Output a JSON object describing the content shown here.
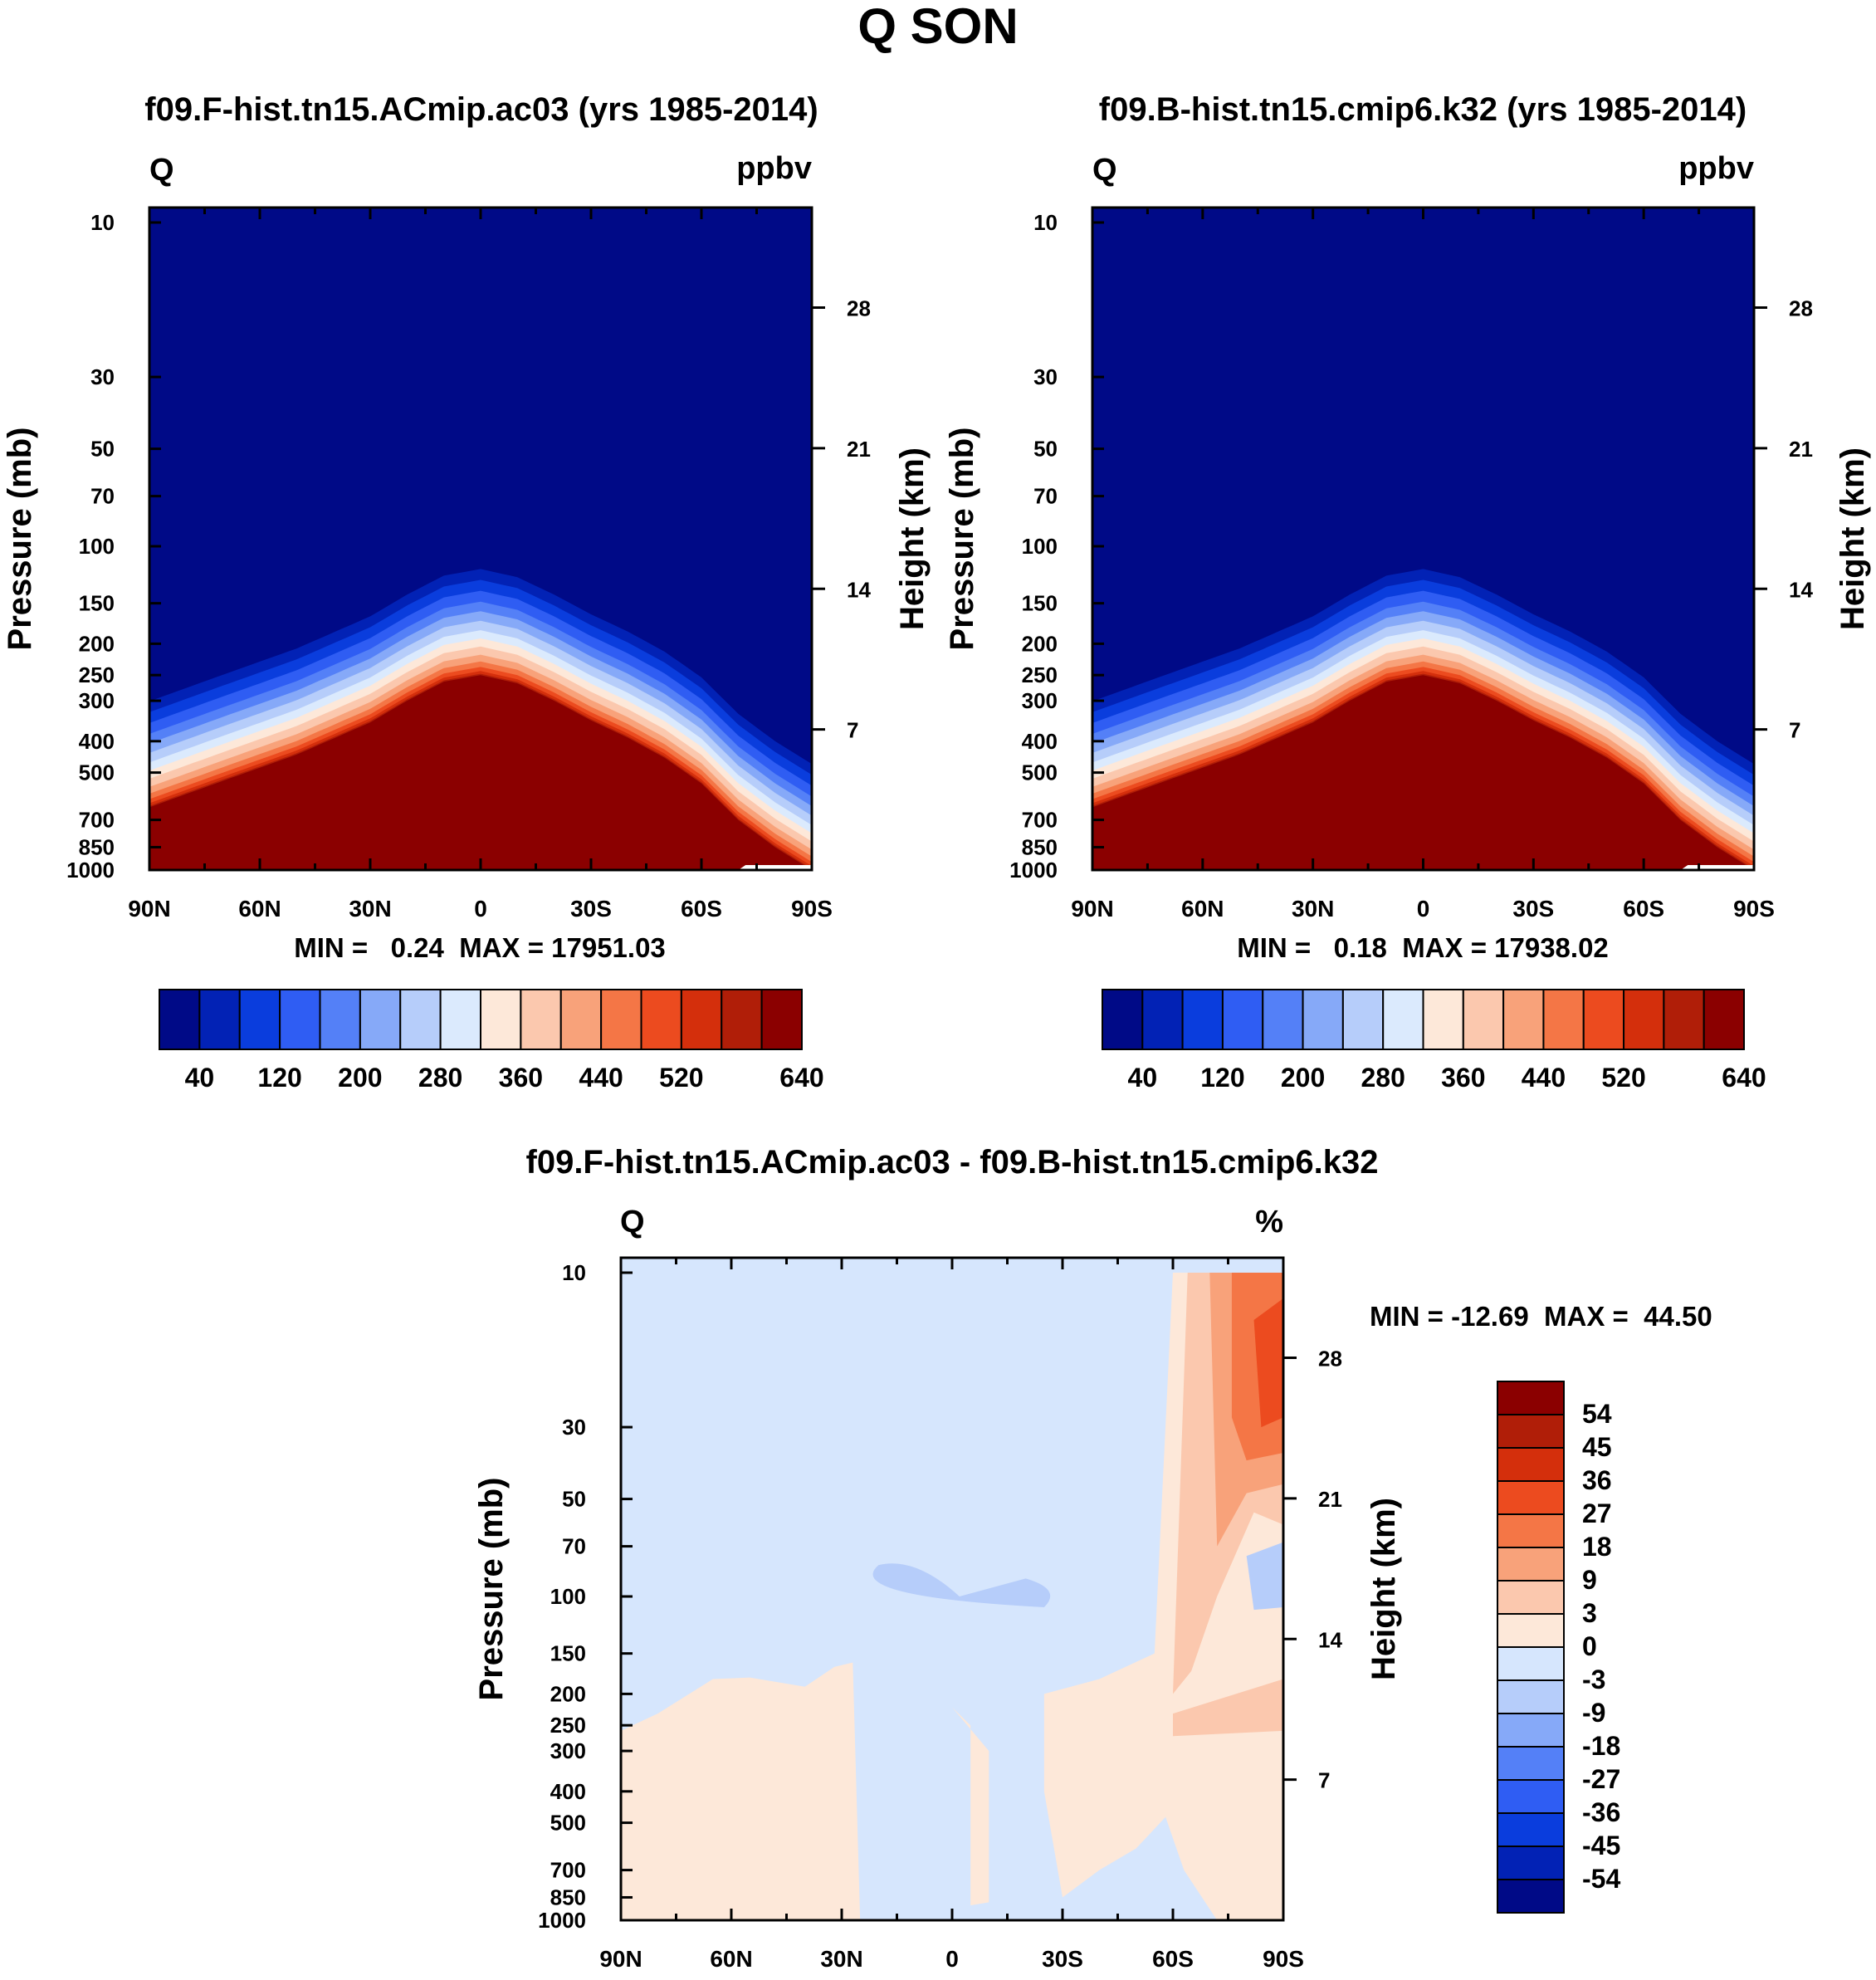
{
  "figure": {
    "title": "Q SON"
  },
  "colors": {
    "abs_levels": [
      "#000a87",
      "#0222b5",
      "#0a3ddd",
      "#2f5df3",
      "#5480f7",
      "#86a9f8",
      "#b6cdfa",
      "#dbeafd",
      "#fde8d9",
      "#fbc8ae",
      "#f8a27a",
      "#f47646",
      "#ec4b1f",
      "#d42f0c",
      "#b01e08",
      "#8b0000"
    ],
    "diff_levels": [
      "#000a87",
      "#0222b5",
      "#0a3ddd",
      "#2f5df3",
      "#5480f7",
      "#86a9f8",
      "#b6cdfa",
      "#d6e6fd",
      "#fde8d9",
      "#fbc8ae",
      "#f8a27a",
      "#f47646",
      "#ec4b1f",
      "#d42f0c",
      "#b01e08",
      "#8b0000"
    ]
  },
  "chart_data": [
    {
      "type": "heatmap",
      "id": "panel1",
      "title": "f09.F-hist.tn15.ACmip.ac03 (yrs 1985-2014)",
      "variable": "Q",
      "units": "ppbv",
      "xlabel": "",
      "ylabel": "Pressure (mb)",
      "y2label": "Height (km)",
      "xticks": [
        "90N",
        "60N",
        "30N",
        "0",
        "30S",
        "60S",
        "90S"
      ],
      "yticks": [
        10,
        30,
        50,
        70,
        100,
        150,
        200,
        250,
        300,
        400,
        500,
        700,
        850,
        1000
      ],
      "height_ticks": [
        28,
        21,
        14,
        7
      ],
      "ylim": [
        1000,
        10
      ],
      "min_label": "MIN =   0.24  MAX = 17951.03",
      "min": 0.24,
      "max": 17951.03,
      "colorbar_levels": [
        40,
        80,
        120,
        160,
        200,
        240,
        280,
        320,
        360,
        400,
        440,
        480,
        520,
        560,
        600,
        640
      ],
      "colorbar_labels": [
        "40",
        "120",
        "200",
        "280",
        "360",
        "440",
        "520",
        "640"
      ],
      "tropopause_profile": {
        "lat": [
          90,
          70,
          50,
          30,
          20,
          10,
          0,
          -10,
          -20,
          -30,
          -40,
          -50,
          -60,
          -70,
          -80,
          -90
        ],
        "pressure_mb": [
          640,
          530,
          440,
          350,
          300,
          262,
          250,
          265,
          300,
          345,
          390,
          450,
          540,
          700,
          850,
          1000
        ]
      }
    },
    {
      "type": "heatmap",
      "id": "panel2",
      "title": "f09.B-hist.tn15.cmip6.k32 (yrs 1985-2014)",
      "variable": "Q",
      "units": "ppbv",
      "xlabel": "",
      "ylabel": "Pressure (mb)",
      "y2label": "Height (km)",
      "xticks": [
        "90N",
        "60N",
        "30N",
        "0",
        "30S",
        "60S",
        "90S"
      ],
      "yticks": [
        10,
        30,
        50,
        70,
        100,
        150,
        200,
        250,
        300,
        400,
        500,
        700,
        850,
        1000
      ],
      "height_ticks": [
        28,
        21,
        14,
        7
      ],
      "ylim": [
        1000,
        10
      ],
      "min_label": "MIN =   0.18  MAX = 17938.02",
      "min": 0.18,
      "max": 17938.02,
      "colorbar_levels": [
        40,
        80,
        120,
        160,
        200,
        240,
        280,
        320,
        360,
        400,
        440,
        480,
        520,
        560,
        600,
        640
      ],
      "colorbar_labels": [
        "40",
        "120",
        "200",
        "280",
        "360",
        "440",
        "520",
        "640"
      ],
      "tropopause_profile": {
        "lat": [
          90,
          70,
          50,
          30,
          20,
          10,
          0,
          -10,
          -20,
          -30,
          -40,
          -50,
          -60,
          -70,
          -80,
          -90
        ],
        "pressure_mb": [
          640,
          530,
          440,
          350,
          300,
          262,
          250,
          265,
          300,
          345,
          390,
          450,
          540,
          700,
          850,
          1000
        ]
      }
    },
    {
      "type": "heatmap",
      "id": "panel3",
      "title": "f09.F-hist.tn15.ACmip.ac03 - f09.B-hist.tn15.cmip6.k32",
      "variable": "Q",
      "units": "%",
      "xlabel": "",
      "ylabel": "Pressure (mb)",
      "y2label": "Height (km)",
      "xticks": [
        "90N",
        "60N",
        "30N",
        "0",
        "30S",
        "60S",
        "90S"
      ],
      "yticks": [
        10,
        30,
        50,
        70,
        100,
        150,
        200,
        250,
        300,
        400,
        500,
        700,
        850,
        1000
      ],
      "height_ticks": [
        28,
        21,
        14,
        7
      ],
      "ylim": [
        1000,
        10
      ],
      "min_label": "MIN = -12.69  MAX =  44.50",
      "min": -12.69,
      "max": 44.5,
      "colorbar_labels": [
        "54",
        "45",
        "36",
        "27",
        "18",
        "9",
        "3",
        "0",
        "-3",
        "-9",
        "-18",
        "-27",
        "-36",
        "-45",
        "-54"
      ],
      "regions": [
        {
          "name": "background",
          "level": "-3 to 0"
        },
        {
          "name": "polar-south-stratosphere",
          "lat_range": [
            -55,
            -90
          ],
          "pressure_range": [
            10,
            150
          ],
          "max_level": "36 to 45"
        },
        {
          "name": "tropical-lower-stratosphere-negative",
          "lat_range": [
            -25,
            -5
          ],
          "pressure_range": [
            85,
            115
          ],
          "level": "-9 to -3"
        },
        {
          "name": "troposphere-positive",
          "lat_range": [
            90,
            -90
          ],
          "pressure_range": [
            180,
            1000
          ],
          "level": "0 to 3"
        }
      ]
    }
  ]
}
